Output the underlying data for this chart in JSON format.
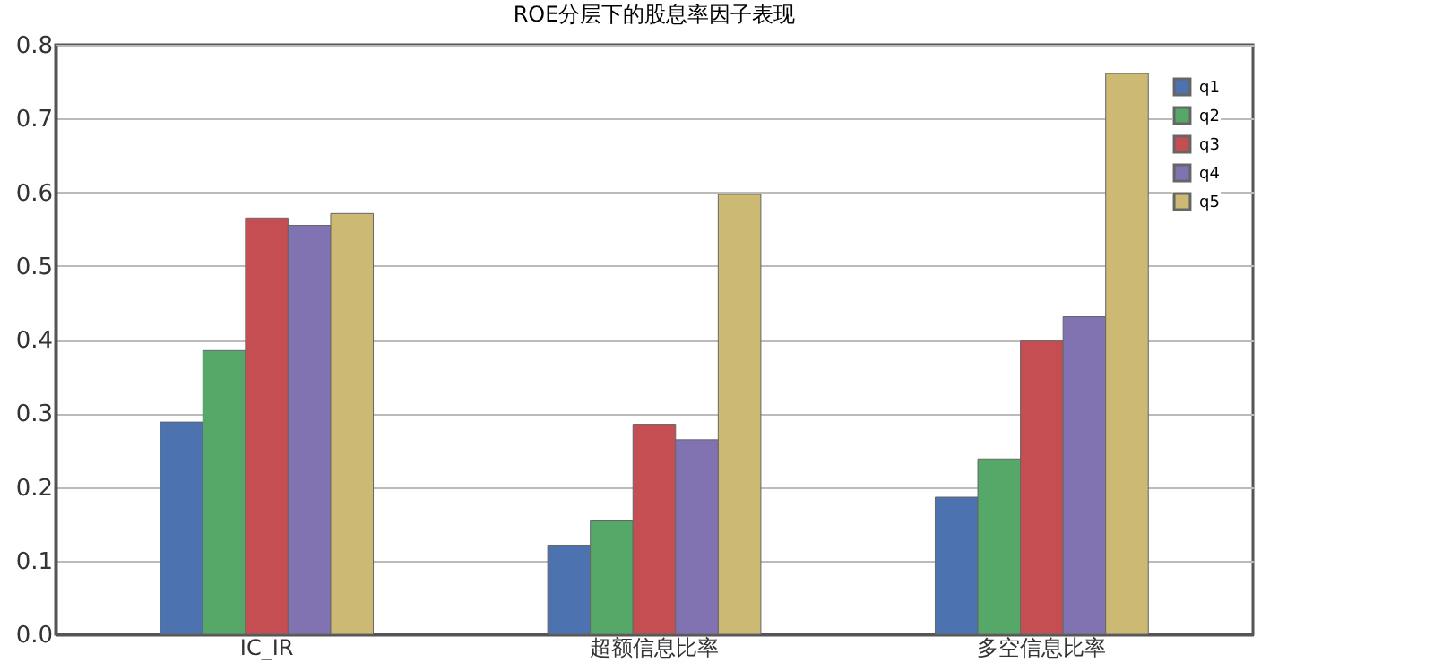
{
  "chart_data": {
    "type": "bar",
    "title": "ROE分层下的股息率因子表现",
    "categories": [
      "IC_IR",
      "超额信息比率",
      "多空信息比率"
    ],
    "series": [
      {
        "name": "q1",
        "color": "#4c72b0",
        "values": [
          0.288,
          0.121,
          0.186
        ]
      },
      {
        "name": "q2",
        "color": "#55a868",
        "values": [
          0.385,
          0.155,
          0.238
        ]
      },
      {
        "name": "q3",
        "color": "#c44e52",
        "values": [
          0.565,
          0.285,
          0.398
        ]
      },
      {
        "name": "q4",
        "color": "#8172b2",
        "values": [
          0.555,
          0.264,
          0.431
        ]
      },
      {
        "name": "q5",
        "color": "#ccb974",
        "values": [
          0.571,
          0.597,
          0.761
        ]
      }
    ],
    "ylim": [
      0,
      0.8
    ],
    "yticks": [
      {
        "value": 0,
        "label": "0.0"
      },
      0.1,
      0.2,
      0.3,
      0.4,
      0.5,
      0.6,
      0.7,
      0.8
    ],
    "grid": "y",
    "legend": "top right"
  }
}
